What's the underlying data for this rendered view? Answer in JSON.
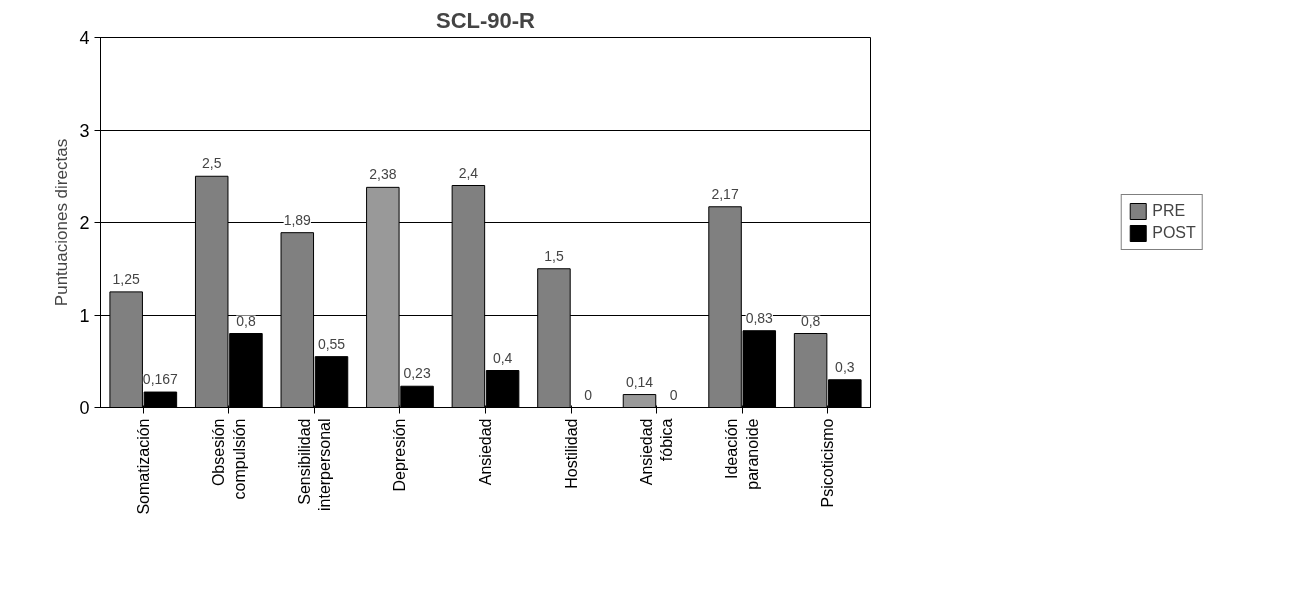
{
  "chart_data": {
    "type": "bar",
    "title": "SCL-90-R",
    "ylabel": "Puntuaciones directas",
    "categories": [
      "Somatización",
      "Obsesión compulsión",
      "Sensibilidad interpersonal",
      "Depresión",
      "Ansiedad",
      "Hostilidad",
      "Ansiedad fóbica",
      "Ideación paranoide",
      "Psicoticismo"
    ],
    "series": [
      {
        "name": "PRE",
        "color": "#808080",
        "colors": [
          null,
          null,
          null,
          "#999999",
          null,
          null,
          "#999999",
          null,
          null
        ],
        "values": [
          1.25,
          2.5,
          1.89,
          2.38,
          2.4,
          1.5,
          0.14,
          2.17,
          0.8
        ],
        "value_labels": [
          "1,25",
          "2,5",
          "1,89",
          "2,38",
          "2,4",
          "1,5",
          "0,14",
          "2,17",
          "0,8"
        ]
      },
      {
        "name": "POST",
        "color": "#000000",
        "values": [
          0.167,
          0.8,
          0.55,
          0.23,
          0.4,
          0,
          0,
          0.83,
          0.3
        ],
        "value_labels": [
          "0,167",
          "0,8",
          "0,55",
          "0,23",
          "0,4",
          "0",
          "0",
          "0,83",
          "0,3"
        ]
      }
    ],
    "ylim": [
      0,
      4
    ],
    "yticks": [
      0,
      1,
      2,
      3,
      4
    ],
    "grid": "y",
    "legend": "right"
  }
}
